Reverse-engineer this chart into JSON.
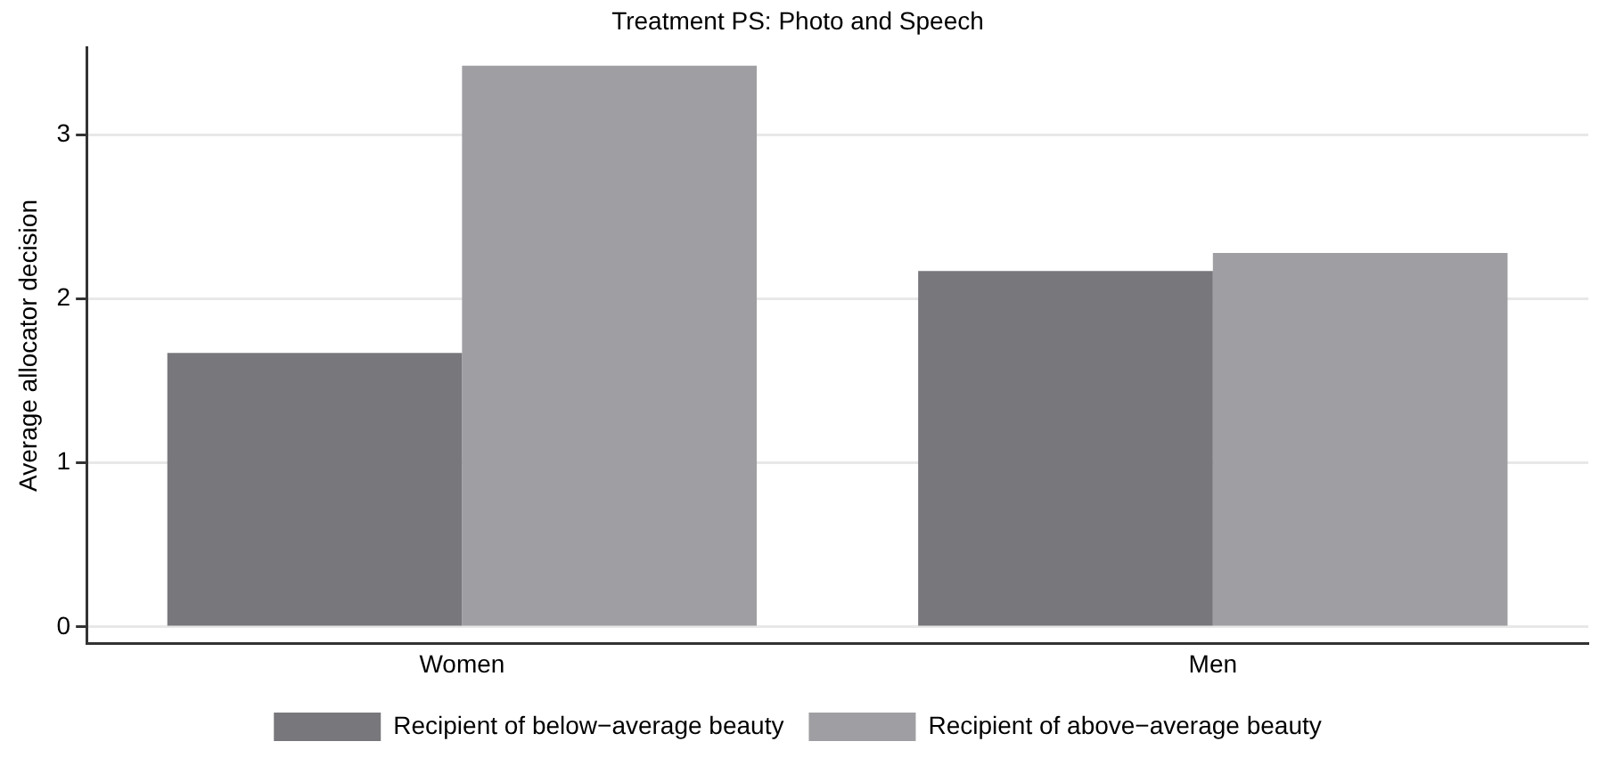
{
  "chart_data": {
    "type": "bar",
    "title": "Treatment PS: Photo and Speech",
    "ylabel": "Average allocator decision",
    "categories": [
      "Women",
      "Men"
    ],
    "series": [
      {
        "name": "Recipient of below−average beauty",
        "color": "#78787c",
        "values": [
          1.67,
          2.17
        ]
      },
      {
        "name": "Recipient of above−average beauty",
        "color": "#9f9fa3",
        "values": [
          3.42,
          2.28
        ]
      }
    ],
    "ylim": [
      -0.1,
      3.53
    ],
    "yticks": [
      0,
      1,
      2,
      3
    ],
    "grid": "y",
    "legend": "bottom"
  }
}
